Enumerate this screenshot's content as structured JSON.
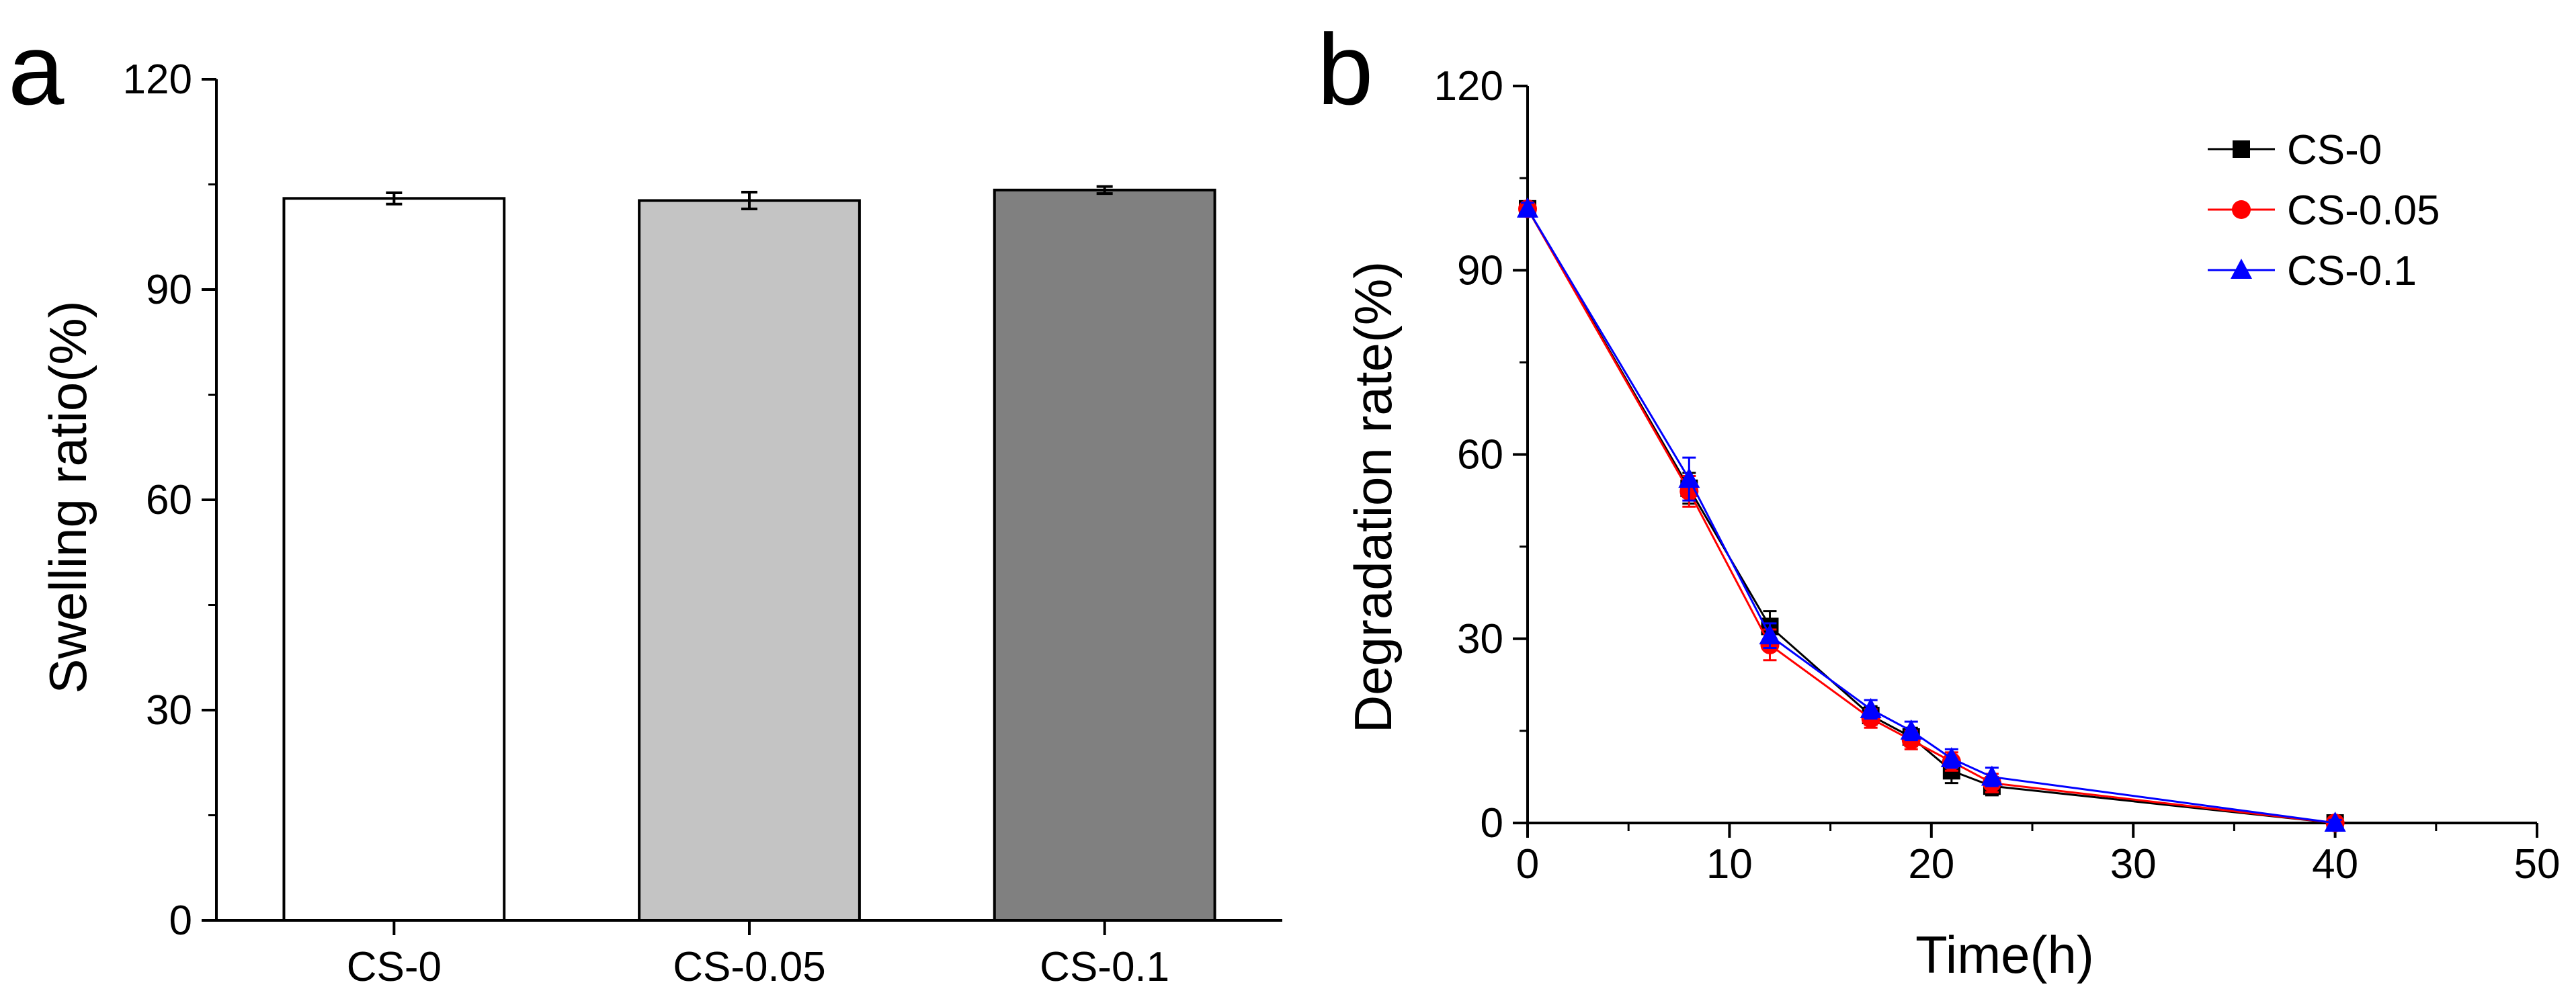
{
  "chart_data": [
    {
      "panel_label": "a",
      "type": "bar",
      "title": "",
      "xlabel": "",
      "ylabel": "Swelling ratio(%)",
      "categories": [
        "CS-0",
        "CS-0.05",
        "CS-0.1"
      ],
      "values": [
        103.0,
        102.7,
        104.2
      ],
      "errors": [
        0.8,
        1.2,
        0.5
      ],
      "colors": [
        "#ffffff",
        "#c4c4c4",
        "#808080"
      ],
      "ylim": [
        0,
        120
      ],
      "yticks": [
        "0",
        "30",
        "60",
        "90",
        "120"
      ],
      "grid": false
    },
    {
      "panel_label": "b",
      "type": "line",
      "title": "",
      "xlabel": "Time(h)",
      "ylabel": "Degradation rate(%)",
      "xlim": [
        0,
        50
      ],
      "ylim": [
        0,
        120
      ],
      "xticks": [
        "0",
        "10",
        "20",
        "30",
        "40",
        "50"
      ],
      "yticks": [
        "0",
        "30",
        "60",
        "90",
        "120"
      ],
      "grid": false,
      "legend_position": "top-right",
      "x": [
        0,
        8,
        12,
        17,
        19,
        21,
        23,
        40
      ],
      "series": [
        {
          "name": "CS-0",
          "color": "#000000",
          "marker": "square",
          "values": [
            100,
            54.5,
            32,
            17.5,
            14,
            8.5,
            6,
            0
          ],
          "errors": [
            1,
            2.5,
            2.5,
            1.5,
            1.5,
            2,
            1.5,
            0.5
          ]
        },
        {
          "name": "CS-0.05",
          "color": "#ff0000",
          "marker": "circle",
          "values": [
            100,
            54,
            29,
            17,
            13.5,
            10,
            6.5,
            0
          ],
          "errors": [
            1,
            2.5,
            2.5,
            1.5,
            1.5,
            1.5,
            1.5,
            0.5
          ]
        },
        {
          "name": "CS-0.1",
          "color": "#0000ff",
          "marker": "triangle",
          "values": [
            100,
            56,
            30.5,
            18.5,
            15,
            10.5,
            7.5,
            0
          ],
          "errors": [
            1,
            3.5,
            2,
            1.5,
            1.5,
            1.5,
            1.5,
            0.5
          ]
        }
      ]
    }
  ]
}
